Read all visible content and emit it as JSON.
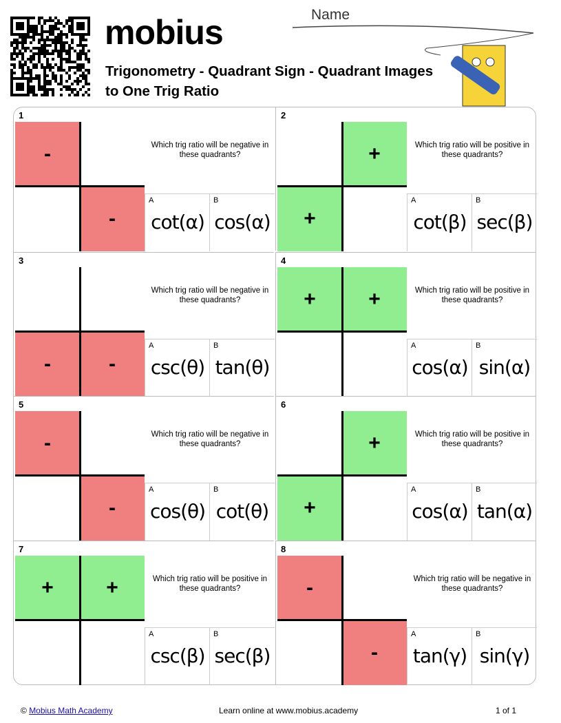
{
  "header": {
    "name_label": "Name",
    "logo": "mobius",
    "title": "Trigonometry - Quadrant Sign - Quadrant Images to One Trig Ratio"
  },
  "problems": [
    {
      "number": "1",
      "grid": [
        [
          "-",
          null
        ],
        [
          null,
          "-"
        ]
      ],
      "question": "Which trig ratio will be negative in these quadrants?",
      "options": [
        {
          "letter": "A",
          "text": "cot(α)"
        },
        {
          "letter": "B",
          "text": "cos(α)"
        }
      ]
    },
    {
      "number": "2",
      "grid": [
        [
          null,
          "+"
        ],
        [
          "+",
          null
        ]
      ],
      "question": "Which trig ratio will be positive in these quadrants?",
      "options": [
        {
          "letter": "A",
          "text": "cot(β)"
        },
        {
          "letter": "B",
          "text": "sec(β)"
        }
      ]
    },
    {
      "number": "3",
      "grid": [
        [
          null,
          null
        ],
        [
          "-",
          "-"
        ]
      ],
      "question": "Which trig ratio will be negative in these quadrants?",
      "options": [
        {
          "letter": "A",
          "text": "csc(θ)"
        },
        {
          "letter": "B",
          "text": "tan(θ)"
        }
      ]
    },
    {
      "number": "4",
      "grid": [
        [
          "+",
          "+"
        ],
        [
          null,
          null
        ]
      ],
      "question": "Which trig ratio will be positive in these quadrants?",
      "options": [
        {
          "letter": "A",
          "text": "cos(α)"
        },
        {
          "letter": "B",
          "text": "sin(α)"
        }
      ]
    },
    {
      "number": "5",
      "grid": [
        [
          "-",
          null
        ],
        [
          null,
          "-"
        ]
      ],
      "question": "Which trig ratio will be negative in these quadrants?",
      "options": [
        {
          "letter": "A",
          "text": "cos(θ)"
        },
        {
          "letter": "B",
          "text": "cot(θ)"
        }
      ]
    },
    {
      "number": "6",
      "grid": [
        [
          null,
          "+"
        ],
        [
          "+",
          null
        ]
      ],
      "question": "Which trig ratio will be positive in these quadrants?",
      "options": [
        {
          "letter": "A",
          "text": "cos(α)"
        },
        {
          "letter": "B",
          "text": "tan(α)"
        }
      ]
    },
    {
      "number": "7",
      "grid": [
        [
          "+",
          "+"
        ],
        [
          null,
          null
        ]
      ],
      "question": "Which trig ratio will be positive in these quadrants?",
      "options": [
        {
          "letter": "A",
          "text": "csc(β)"
        },
        {
          "letter": "B",
          "text": "sec(β)"
        }
      ]
    },
    {
      "number": "8",
      "grid": [
        [
          "-",
          null
        ],
        [
          null,
          "-"
        ]
      ],
      "question": "Which trig ratio will be negative in these quadrants?",
      "options": [
        {
          "letter": "A",
          "text": "tan(γ)"
        },
        {
          "letter": "B",
          "text": "sin(γ)"
        }
      ]
    }
  ],
  "footer": {
    "copyright": "©",
    "link": "Mobius Math Academy",
    "center": "Learn online at www.mobius.academy",
    "page": "1 of 1"
  }
}
